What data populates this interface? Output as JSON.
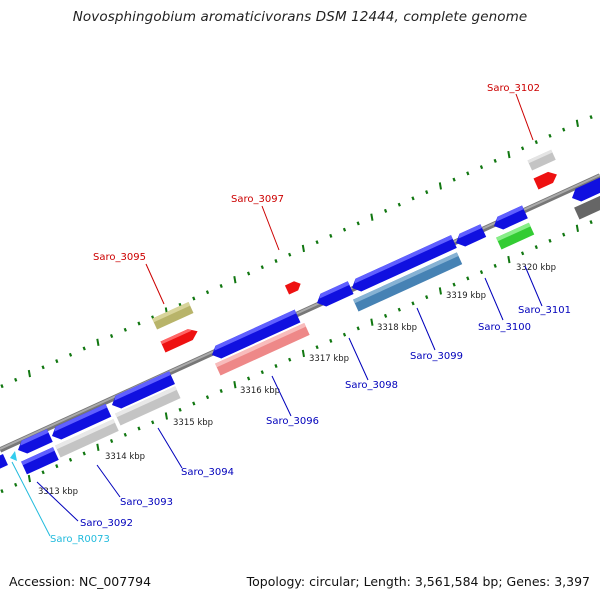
{
  "title": "Novosphingobium aromaticivorans DSM 12444, complete genome",
  "footer": {
    "accession": "Accession: NC_007794",
    "summary": "Topology: circular; Length: 3,561,584 bp; Genes: 3,397"
  },
  "colors": {
    "forward_gene": "#1010e0",
    "red_gene": "#ee1111",
    "olive_gene": "#b8b46a",
    "grey_gene": "#c4c4c4",
    "pink_gene": "#ee8888",
    "steelblue_gene": "#4682b4",
    "green_gene": "#33cc33",
    "dark_gene": "#666666",
    "rna_gene": "#33ccee",
    "backbone": "#888888",
    "ticks": "#117711",
    "label_red": "#cc0000",
    "label_blue": "#0000bb",
    "label_cyan": "#22bbdd"
  },
  "kbp_labels": [
    "3313 kbp",
    "3314 kbp",
    "3315 kbp",
    "3316 kbp",
    "3317 kbp",
    "3318 kbp",
    "3319 kbp",
    "3320 kbp"
  ],
  "gene_labels": {
    "saro_3095": "Saro_3095",
    "saro_3097": "Saro_3097",
    "saro_3102": "Saro_3102",
    "saro_3092": "Saro_3092",
    "saro_3093": "Saro_3093",
    "saro_3094": "Saro_3094",
    "saro_3096": "Saro_3096",
    "saro_3098": "Saro_3098",
    "saro_3099": "Saro_3099",
    "saro_3100": "Saro_3100",
    "saro_3101": "Saro_3101",
    "saro_r0073": "Saro_R0073"
  }
}
